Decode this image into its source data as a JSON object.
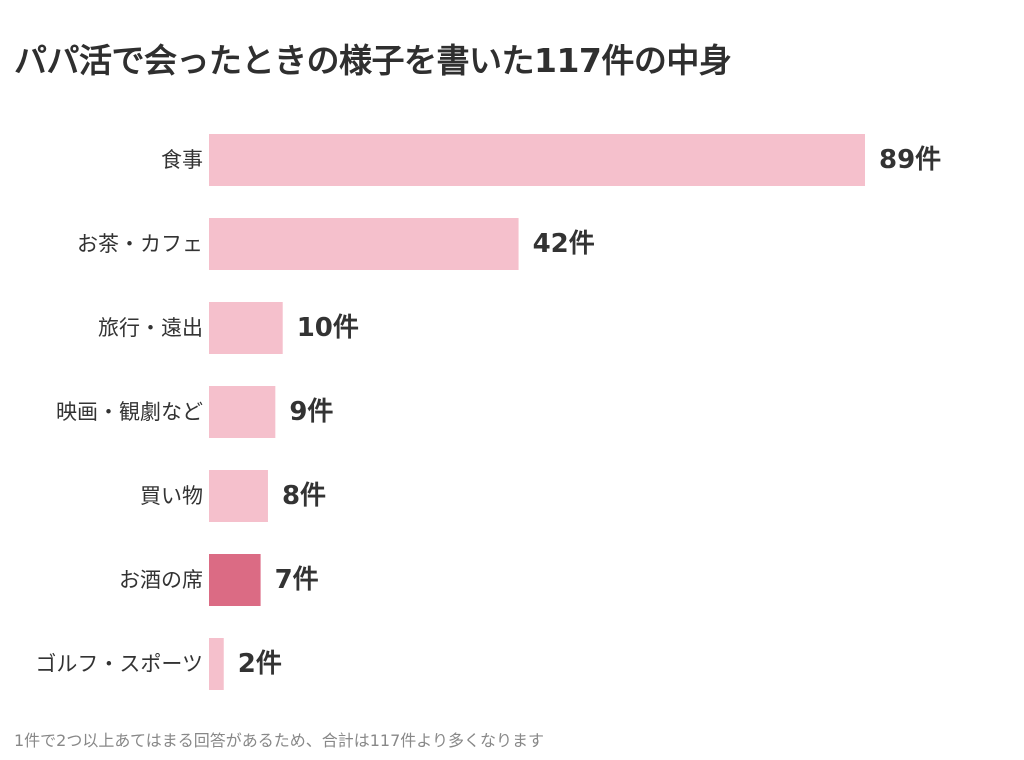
{
  "title": "パパ活で会ったときの様子を書いた117件の中身",
  "footnote": "1件で2つ以上あてはまる回答があるため、合計は117件より多くなります",
  "colors": {
    "bar": "#f5c0cc",
    "highlight": "#db6b84"
  },
  "chart_data": {
    "type": "bar",
    "orientation": "horizontal",
    "title": "パパ活で会ったときの様子を書いた117件の中身",
    "categories": [
      "食事",
      "お茶・カフェ",
      "旅行・遠出",
      "映画・観劇など",
      "買い物",
      "お酒の席",
      "ゴルフ・スポーツ"
    ],
    "values": [
      89,
      42,
      10,
      9,
      8,
      7,
      2
    ],
    "data_labels": [
      "89件",
      "42件",
      "10件",
      "9件",
      "8件",
      "7件",
      "2件"
    ],
    "highlight_index": 5,
    "xlim": [
      0,
      89
    ],
    "grid": false,
    "legend": "none"
  }
}
